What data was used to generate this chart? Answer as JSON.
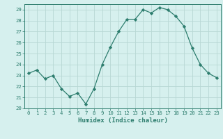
{
  "x": [
    0,
    1,
    2,
    3,
    4,
    5,
    6,
    7,
    8,
    9,
    10,
    11,
    12,
    13,
    14,
    15,
    16,
    17,
    18,
    19,
    20,
    21,
    22,
    23
  ],
  "y": [
    23.2,
    23.5,
    22.7,
    23.0,
    21.8,
    21.1,
    21.4,
    20.4,
    21.8,
    24.0,
    25.6,
    27.0,
    28.1,
    28.1,
    29.0,
    28.7,
    29.2,
    29.0,
    28.4,
    27.5,
    25.5,
    24.0,
    23.2,
    22.8
  ],
  "line_color": "#2d7d6e",
  "marker": "D",
  "marker_size": 2.2,
  "bg_color": "#d6f0ee",
  "grid_color": "#b8d8d4",
  "xlabel": "Humidex (Indice chaleur)",
  "ylim": [
    20,
    29.5
  ],
  "xlim": [
    -0.5,
    23.5
  ],
  "yticks": [
    20,
    21,
    22,
    23,
    24,
    25,
    26,
    27,
    28,
    29
  ],
  "xticks": [
    0,
    1,
    2,
    3,
    4,
    5,
    6,
    7,
    8,
    9,
    10,
    11,
    12,
    13,
    14,
    15,
    16,
    17,
    18,
    19,
    20,
    21,
    22,
    23
  ],
  "tick_color": "#2d7d6e",
  "label_fontsize": 6.5,
  "tick_fontsize": 5.2,
  "linewidth": 0.9
}
